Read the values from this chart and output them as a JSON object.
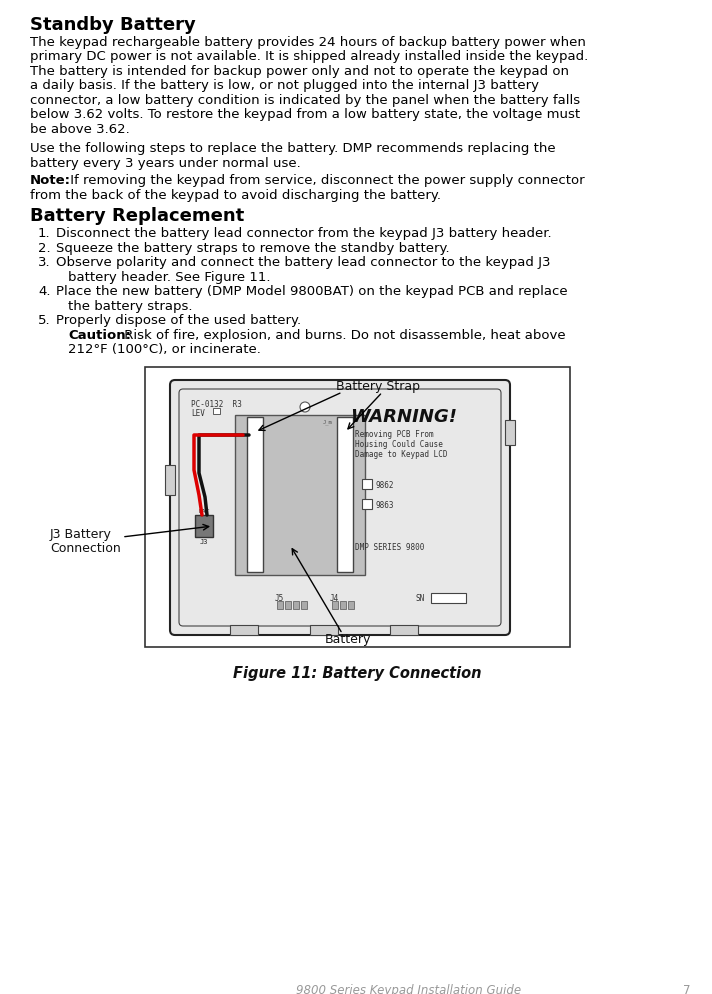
{
  "title_heading": "Standby Battery",
  "body_para1_lines": [
    "The keypad rechargeable battery provides 24 hours of backup battery power when",
    "primary DC power is not available. It is shipped already installed inside the keypad.",
    "The battery is intended for backup power only and not to operate the keypad on",
    "a daily basis. If the battery is low, or not plugged into the internal J3 battery",
    "connector, a low battery condition is indicated by the panel when the battery falls",
    "below 3.62 volts. To restore the keypad from a low battery state, the voltage must",
    "be above 3.62."
  ],
  "body_para2_lines": [
    "Use the following steps to replace the battery. DMP recommends replacing the",
    "battery every 3 years under normal use."
  ],
  "note_bold": "Note:",
  "note_line1": " If removing the keypad from service, disconnect the power supply connector",
  "note_line2": "from the back of the keypad to avoid discharging the battery.",
  "section2_heading": "Battery Replacement",
  "step1": "Disconnect the battery lead connector from the keypad J3 battery header.",
  "step2": "Squeeze the battery straps to remove the standby battery.",
  "step3a": "Observe polarity and connect the battery lead connector to the keypad J3",
  "step3b": "battery header. See Figure 11.",
  "step4a": "Place the new battery (DMP Model 9800BAT) on the keypad PCB and replace",
  "step4b": "the battery straps.",
  "step5": "Properly dispose of the used battery.",
  "caution_bold": "Caution:",
  "caution_rest": " Risk of fire, explosion, and burns. Do not disassemble, heat above",
  "caution_line2": "212°F (100°C), or incinerate.",
  "figure_caption": "Figure 11: Battery Connection",
  "label_battery_strap": "Battery Strap",
  "label_j3_battery_line1": "J3 Battery",
  "label_j3_battery_line2": "Connection",
  "label_battery": "Battery",
  "pcb_label1": "PC-0132  R3",
  "pcb_label2": "LEV",
  "warn_title": "WARNING!",
  "warn_line1": "Removing PCB From",
  "warn_line2": "Housing Could Cause",
  "warn_line3": "Damage to Keypad LCD",
  "cb_label1": "9862",
  "cb_label2": "9863",
  "dmp_label": "DMP SERIES 9800",
  "j5_label": "J5",
  "j4_label": "J4",
  "sn_label": "SN",
  "footer_text": "9800 Series Keypad Installation Guide",
  "footer_page": "7",
  "bg_color": "#ffffff",
  "text_color": "#000000",
  "gray_text": "#888888",
  "dark_text": "#222222"
}
